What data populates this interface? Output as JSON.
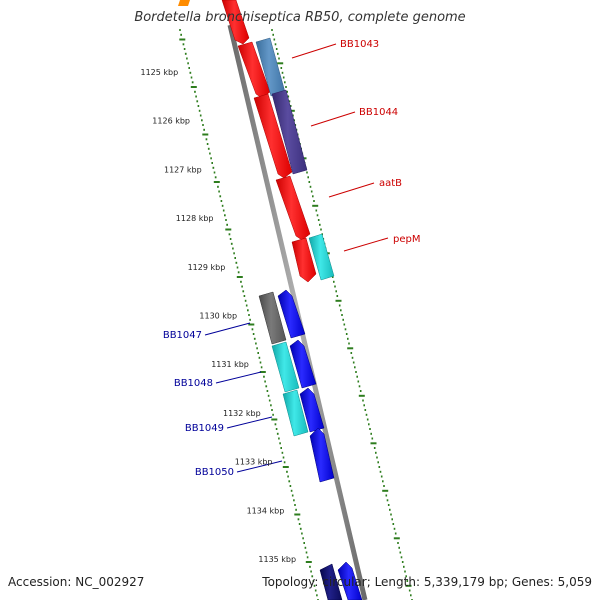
{
  "title": "Bordetella bronchiseptica RB50, complete genome",
  "footer": {
    "accession_label": "Accession:",
    "accession": "NC_002927",
    "topology_label": "Topology:",
    "topology": "circular",
    "length_label": "Length:",
    "length": "5,339,179 bp",
    "genes_label": "Genes:",
    "genes": "5,059"
  },
  "kbp_scale": {
    "labels": [
      "1125 kbp",
      "1126 kbp",
      "1127 kbp",
      "1128 kbp",
      "1129 kbp",
      "1130 kbp",
      "1131 kbp",
      "1132 kbp",
      "1133 kbp",
      "1134 kbp",
      "1135 kbp"
    ],
    "color": "#2e7d1e"
  },
  "backbone_color": "#8c8c8c",
  "strand_colors": {
    "red": "#ff0000",
    "blue": "#0000ee",
    "steel": "#4a7fb0",
    "purple": "#4a3d8a",
    "cyan": "#1dc8c8",
    "gray": "#666666",
    "navy": "#10106a",
    "orange": "#ff8c00"
  },
  "gene_labels": {
    "right": [
      {
        "text": "BB1043",
        "color": "#cc0000"
      },
      {
        "text": "BB1044",
        "color": "#cc0000"
      },
      {
        "text": "aatB",
        "color": "#cc0000"
      },
      {
        "text": "pepM",
        "color": "#cc0000"
      }
    ],
    "left": [
      {
        "text": "BB1047",
        "color": "#000099"
      },
      {
        "text": "BB1048",
        "color": "#000099"
      },
      {
        "text": "BB1049",
        "color": "#000099"
      },
      {
        "text": "BB1050",
        "color": "#000099"
      }
    ]
  }
}
